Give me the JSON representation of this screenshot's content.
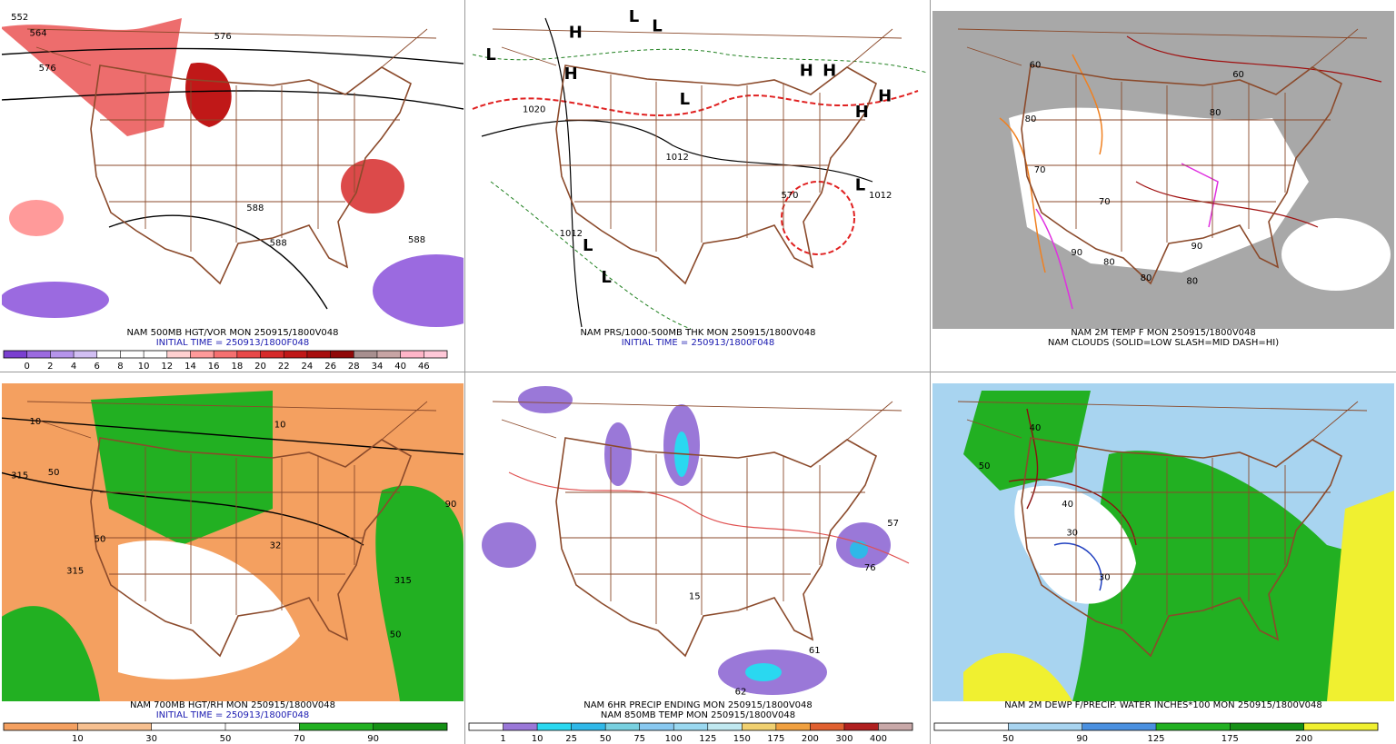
{
  "panels": [
    {
      "caption": "NAM 500MB HGT/VOR MON 250915/1800V048",
      "subcaption": "INITIAL TIME = 250913/1800F048",
      "legend": [
        "0",
        "2",
        "4",
        "6",
        "8",
        "10",
        "12",
        "14",
        "16",
        "18",
        "20",
        "22",
        "24",
        "26",
        "28",
        "34",
        "40",
        "46"
      ],
      "legend_colors": [
        "#7a3fd0",
        "#9b6ae0",
        "#b594ea",
        "#d2bff3",
        "#ffffff",
        "#ffffff",
        "#ffffff",
        "#ffd0d0",
        "#ff9a9a",
        "#f57070",
        "#e84848",
        "#d62a2a",
        "#c01818",
        "#a80f0f",
        "#900808",
        "#a78f8f",
        "#c7a4a4",
        "#ffb5c8",
        "#ffc8d8"
      ],
      "map_labels": [
        "552",
        "564",
        "576",
        "576",
        "588",
        "588",
        "588"
      ]
    },
    {
      "caption": "NAM PRS/1000-500MB THK MON 250915/1800V048",
      "subcaption": "INITIAL TIME = 250913/1800F048",
      "map_labels": [
        "L",
        "L",
        "L",
        "L",
        "L",
        "L",
        "L",
        "H",
        "H",
        "H",
        "H",
        "H",
        "H",
        "1020",
        "1012",
        "1012",
        "1012",
        "570"
      ]
    },
    {
      "caption": "NAM 2M TEMP F MON 250915/1800V048",
      "subcaption": "NAM CLOUDS (SOLID=LOW SLASH=MID DASH=HI)",
      "map_labels": [
        "80",
        "80",
        "70",
        "70",
        "80",
        "80",
        "90",
        "90",
        "80",
        "60",
        "60"
      ]
    },
    {
      "caption": "NAM 700MB HGT/RH MON 250915/1800V048",
      "subcaption": "INITIAL TIME = 250913/1800F048",
      "legend": [
        "10",
        "30",
        "50",
        "70",
        "90"
      ],
      "legend_colors": [
        "#f4a060",
        "#f7c090",
        "#ffffff",
        "#ffffff",
        "#22b022",
        "#159015"
      ],
      "map_labels": [
        "315",
        "315",
        "315",
        "50",
        "50",
        "50",
        "10",
        "10",
        "90",
        "32"
      ]
    },
    {
      "caption": "NAM 6HR PRECIP ENDING MON 250915/1800V048",
      "subcaption": "NAM 850MB TEMP MON 250915/1800V048",
      "legend": [
        "1",
        "10",
        "25",
        "50",
        "75",
        "100",
        "125",
        "150",
        "175",
        "200",
        "300",
        "400"
      ],
      "legend_colors": [
        "#ffffff",
        "#9a78d8",
        "#2ad8f0",
        "#30b8e8",
        "#78d0e0",
        "#88c8f0",
        "#9ad8f0",
        "#c0e8f0",
        "#f0d070",
        "#f0a040",
        "#e06030",
        "#b02020",
        "#c8a8a8"
      ],
      "map_labels": [
        "15",
        "76",
        "61",
        "57",
        "62"
      ]
    },
    {
      "caption": "NAM 2M DEWP F/PRECIP. WATER INCHES*100 MON 250915/1800V048",
      "legend": [
        "50",
        "90",
        "125",
        "175",
        "200"
      ],
      "legend_colors": [
        "#ffffff",
        "#a8d4f0",
        "#4a90e0",
        "#22b022",
        "#159015",
        "#f0f030"
      ],
      "map_labels": [
        "30",
        "30",
        "40",
        "40",
        "50"
      ]
    }
  ]
}
